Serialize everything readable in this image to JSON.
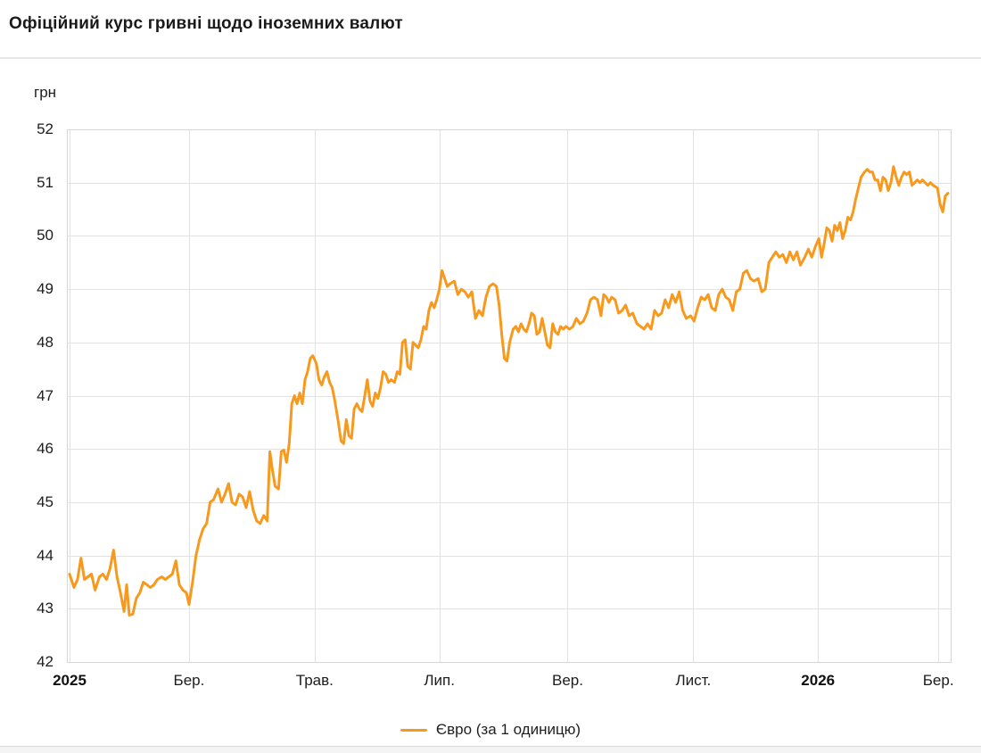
{
  "header": {
    "title": "Офіційний курс гривні щодо іноземних валют"
  },
  "legend": {
    "label": "Євро (за 1 одиницю)"
  },
  "chart_data": {
    "type": "line",
    "title": "Офіційний курс гривні щодо іноземних валют",
    "ylabel": "грн",
    "ylim": [
      42,
      52
    ],
    "grid": true,
    "legend_position": "bottom",
    "colors": {
      "line": "#f7991c",
      "gridline": "#e2e2e2",
      "border": "#d6d6d6",
      "text": "#1c1c1c"
    },
    "y_ticks": [
      "52",
      "51",
      "50",
      "49",
      "48",
      "47",
      "46",
      "45",
      "44",
      "43",
      "42"
    ],
    "x_ticks": [
      {
        "label": "2025",
        "t": 0.0,
        "bold": true
      },
      {
        "label": "Бер.",
        "t": 0.136,
        "bold": false
      },
      {
        "label": "Трав.",
        "t": 0.279,
        "bold": false
      },
      {
        "label": "Лип.",
        "t": 0.421,
        "bold": false
      },
      {
        "label": "Вер.",
        "t": 0.567,
        "bold": false
      },
      {
        "label": "Лист.",
        "t": 0.71,
        "bold": false
      },
      {
        "label": "2026",
        "t": 0.852,
        "bold": true
      },
      {
        "label": "Бер.",
        "t": 0.989,
        "bold": false
      }
    ],
    "series": [
      {
        "name": "Євро (за 1 одиницю)",
        "color": "#f7991c",
        "points": [
          [
            0.0,
            43.65
          ],
          [
            0.005,
            43.4
          ],
          [
            0.009,
            43.55
          ],
          [
            0.013,
            43.95
          ],
          [
            0.017,
            43.55
          ],
          [
            0.021,
            43.6
          ],
          [
            0.025,
            43.65
          ],
          [
            0.029,
            43.35
          ],
          [
            0.034,
            43.6
          ],
          [
            0.038,
            43.65
          ],
          [
            0.042,
            43.55
          ],
          [
            0.046,
            43.75
          ],
          [
            0.05,
            44.1
          ],
          [
            0.054,
            43.6
          ],
          [
            0.058,
            43.3
          ],
          [
            0.062,
            42.95
          ],
          [
            0.065,
            43.45
          ],
          [
            0.068,
            42.88
          ],
          [
            0.072,
            42.9
          ],
          [
            0.076,
            43.2
          ],
          [
            0.08,
            43.3
          ],
          [
            0.084,
            43.5
          ],
          [
            0.088,
            43.45
          ],
          [
            0.092,
            43.4
          ],
          [
            0.096,
            43.45
          ],
          [
            0.1,
            43.55
          ],
          [
            0.105,
            43.6
          ],
          [
            0.109,
            43.55
          ],
          [
            0.113,
            43.6
          ],
          [
            0.117,
            43.65
          ],
          [
            0.121,
            43.9
          ],
          [
            0.125,
            43.45
          ],
          [
            0.129,
            43.35
          ],
          [
            0.133,
            43.3
          ],
          [
            0.136,
            43.08
          ],
          [
            0.14,
            43.5
          ],
          [
            0.144,
            44.0
          ],
          [
            0.148,
            44.3
          ],
          [
            0.152,
            44.5
          ],
          [
            0.156,
            44.6
          ],
          [
            0.16,
            45.0
          ],
          [
            0.164,
            45.05
          ],
          [
            0.169,
            45.25
          ],
          [
            0.173,
            45.0
          ],
          [
            0.177,
            45.15
          ],
          [
            0.181,
            45.35
          ],
          [
            0.185,
            45.0
          ],
          [
            0.189,
            44.95
          ],
          [
            0.193,
            45.15
          ],
          [
            0.197,
            45.1
          ],
          [
            0.201,
            44.9
          ],
          [
            0.205,
            45.2
          ],
          [
            0.209,
            44.85
          ],
          [
            0.213,
            44.65
          ],
          [
            0.217,
            44.6
          ],
          [
            0.221,
            44.75
          ],
          [
            0.225,
            44.65
          ],
          [
            0.228,
            45.95
          ],
          [
            0.231,
            45.6
          ],
          [
            0.234,
            45.3
          ],
          [
            0.238,
            45.25
          ],
          [
            0.241,
            45.95
          ],
          [
            0.244,
            45.98
          ],
          [
            0.247,
            45.75
          ],
          [
            0.25,
            46.1
          ],
          [
            0.253,
            46.85
          ],
          [
            0.256,
            47.0
          ],
          [
            0.259,
            46.85
          ],
          [
            0.262,
            47.05
          ],
          [
            0.265,
            46.85
          ],
          [
            0.268,
            47.3
          ],
          [
            0.271,
            47.45
          ],
          [
            0.274,
            47.7
          ],
          [
            0.277,
            47.75
          ],
          [
            0.281,
            47.6
          ],
          [
            0.284,
            47.3
          ],
          [
            0.287,
            47.2
          ],
          [
            0.29,
            47.35
          ],
          [
            0.293,
            47.45
          ],
          [
            0.296,
            47.25
          ],
          [
            0.299,
            47.15
          ],
          [
            0.302,
            46.9
          ],
          [
            0.306,
            46.5
          ],
          [
            0.309,
            46.15
          ],
          [
            0.312,
            46.1
          ],
          [
            0.315,
            46.55
          ],
          [
            0.318,
            46.25
          ],
          [
            0.321,
            46.2
          ],
          [
            0.324,
            46.75
          ],
          [
            0.327,
            46.85
          ],
          [
            0.33,
            46.75
          ],
          [
            0.333,
            46.7
          ],
          [
            0.336,
            47.0
          ],
          [
            0.339,
            47.3
          ],
          [
            0.342,
            46.9
          ],
          [
            0.345,
            46.8
          ],
          [
            0.348,
            47.05
          ],
          [
            0.351,
            46.95
          ],
          [
            0.354,
            47.15
          ],
          [
            0.357,
            47.45
          ],
          [
            0.36,
            47.4
          ],
          [
            0.363,
            47.25
          ],
          [
            0.366,
            47.3
          ],
          [
            0.37,
            47.25
          ],
          [
            0.373,
            47.45
          ],
          [
            0.376,
            47.4
          ],
          [
            0.379,
            48.0
          ],
          [
            0.382,
            48.05
          ],
          [
            0.385,
            47.55
          ],
          [
            0.388,
            47.5
          ],
          [
            0.391,
            48.0
          ],
          [
            0.394,
            47.95
          ],
          [
            0.397,
            47.9
          ],
          [
            0.4,
            48.05
          ],
          [
            0.403,
            48.3
          ],
          [
            0.406,
            48.25
          ],
          [
            0.409,
            48.6
          ],
          [
            0.412,
            48.75
          ],
          [
            0.415,
            48.65
          ],
          [
            0.418,
            48.8
          ],
          [
            0.421,
            49.0
          ],
          [
            0.424,
            49.35
          ],
          [
            0.427,
            49.2
          ],
          [
            0.43,
            49.05
          ],
          [
            0.433,
            49.1
          ],
          [
            0.438,
            49.15
          ],
          [
            0.442,
            48.9
          ],
          [
            0.446,
            49.0
          ],
          [
            0.45,
            48.95
          ],
          [
            0.454,
            48.85
          ],
          [
            0.458,
            48.95
          ],
          [
            0.462,
            48.45
          ],
          [
            0.466,
            48.6
          ],
          [
            0.47,
            48.5
          ],
          [
            0.474,
            48.85
          ],
          [
            0.478,
            49.05
          ],
          [
            0.482,
            49.1
          ],
          [
            0.486,
            49.05
          ],
          [
            0.489,
            48.7
          ],
          [
            0.492,
            48.15
          ],
          [
            0.495,
            47.7
          ],
          [
            0.498,
            47.65
          ],
          [
            0.501,
            48.0
          ],
          [
            0.505,
            48.25
          ],
          [
            0.508,
            48.3
          ],
          [
            0.511,
            48.2
          ],
          [
            0.514,
            48.35
          ],
          [
            0.517,
            48.25
          ],
          [
            0.52,
            48.2
          ],
          [
            0.523,
            48.35
          ],
          [
            0.526,
            48.55
          ],
          [
            0.529,
            48.5
          ],
          [
            0.532,
            48.15
          ],
          [
            0.535,
            48.2
          ],
          [
            0.538,
            48.45
          ],
          [
            0.541,
            48.2
          ],
          [
            0.544,
            47.95
          ],
          [
            0.547,
            47.9
          ],
          [
            0.55,
            48.35
          ],
          [
            0.553,
            48.2
          ],
          [
            0.556,
            48.15
          ],
          [
            0.559,
            48.3
          ],
          [
            0.562,
            48.25
          ],
          [
            0.565,
            48.3
          ],
          [
            0.569,
            48.25
          ],
          [
            0.573,
            48.3
          ],
          [
            0.577,
            48.45
          ],
          [
            0.581,
            48.35
          ],
          [
            0.585,
            48.4
          ],
          [
            0.589,
            48.55
          ],
          [
            0.593,
            48.8
          ],
          [
            0.597,
            48.85
          ],
          [
            0.601,
            48.8
          ],
          [
            0.605,
            48.5
          ],
          [
            0.608,
            48.9
          ],
          [
            0.611,
            48.85
          ],
          [
            0.614,
            48.75
          ],
          [
            0.617,
            48.85
          ],
          [
            0.621,
            48.8
          ],
          [
            0.625,
            48.55
          ],
          [
            0.629,
            48.6
          ],
          [
            0.633,
            48.7
          ],
          [
            0.637,
            48.5
          ],
          [
            0.641,
            48.55
          ],
          [
            0.646,
            48.35
          ],
          [
            0.65,
            48.3
          ],
          [
            0.654,
            48.25
          ],
          [
            0.658,
            48.35
          ],
          [
            0.662,
            48.25
          ],
          [
            0.666,
            48.6
          ],
          [
            0.67,
            48.5
          ],
          [
            0.674,
            48.55
          ],
          [
            0.678,
            48.8
          ],
          [
            0.682,
            48.65
          ],
          [
            0.686,
            48.9
          ],
          [
            0.69,
            48.75
          ],
          [
            0.694,
            48.95
          ],
          [
            0.698,
            48.6
          ],
          [
            0.702,
            48.45
          ],
          [
            0.707,
            48.5
          ],
          [
            0.711,
            48.4
          ],
          [
            0.715,
            48.65
          ],
          [
            0.719,
            48.85
          ],
          [
            0.723,
            48.8
          ],
          [
            0.727,
            48.9
          ],
          [
            0.731,
            48.65
          ],
          [
            0.735,
            48.6
          ],
          [
            0.739,
            48.9
          ],
          [
            0.743,
            49.0
          ],
          [
            0.747,
            48.85
          ],
          [
            0.751,
            48.8
          ],
          [
            0.755,
            48.6
          ],
          [
            0.759,
            48.95
          ],
          [
            0.763,
            49.0
          ],
          [
            0.767,
            49.3
          ],
          [
            0.771,
            49.35
          ],
          [
            0.775,
            49.2
          ],
          [
            0.779,
            49.15
          ],
          [
            0.784,
            49.2
          ],
          [
            0.788,
            48.95
          ],
          [
            0.792,
            49.0
          ],
          [
            0.796,
            49.5
          ],
          [
            0.8,
            49.6
          ],
          [
            0.804,
            49.7
          ],
          [
            0.808,
            49.6
          ],
          [
            0.812,
            49.65
          ],
          [
            0.816,
            49.5
          ],
          [
            0.82,
            49.7
          ],
          [
            0.824,
            49.55
          ],
          [
            0.828,
            49.7
          ],
          [
            0.832,
            49.45
          ],
          [
            0.837,
            49.6
          ],
          [
            0.841,
            49.75
          ],
          [
            0.845,
            49.6
          ],
          [
            0.849,
            49.8
          ],
          [
            0.853,
            49.95
          ],
          [
            0.856,
            49.6
          ],
          [
            0.859,
            49.85
          ],
          [
            0.862,
            50.15
          ],
          [
            0.865,
            50.1
          ],
          [
            0.868,
            49.9
          ],
          [
            0.871,
            50.2
          ],
          [
            0.874,
            50.1
          ],
          [
            0.877,
            50.25
          ],
          [
            0.88,
            49.95
          ],
          [
            0.883,
            50.1
          ],
          [
            0.886,
            50.35
          ],
          [
            0.889,
            50.3
          ],
          [
            0.892,
            50.45
          ],
          [
            0.895,
            50.7
          ],
          [
            0.898,
            50.9
          ],
          [
            0.901,
            51.1
          ],
          [
            0.905,
            51.2
          ],
          [
            0.908,
            51.25
          ],
          [
            0.911,
            51.2
          ],
          [
            0.914,
            51.2
          ],
          [
            0.917,
            51.05
          ],
          [
            0.92,
            51.05
          ],
          [
            0.923,
            50.85
          ],
          [
            0.926,
            51.1
          ],
          [
            0.929,
            51.05
          ],
          [
            0.932,
            50.85
          ],
          [
            0.935,
            51.0
          ],
          [
            0.938,
            51.3
          ],
          [
            0.941,
            51.1
          ],
          [
            0.944,
            50.95
          ],
          [
            0.947,
            51.1
          ],
          [
            0.95,
            51.2
          ],
          [
            0.953,
            51.15
          ],
          [
            0.956,
            51.2
          ],
          [
            0.959,
            50.95
          ],
          [
            0.962,
            51.0
          ],
          [
            0.965,
            51.05
          ],
          [
            0.968,
            51.0
          ],
          [
            0.971,
            51.05
          ],
          [
            0.974,
            51.0
          ],
          [
            0.977,
            50.95
          ],
          [
            0.98,
            51.0
          ],
          [
            0.983,
            50.95
          ],
          [
            0.988,
            50.9
          ],
          [
            0.991,
            50.6
          ],
          [
            0.994,
            50.45
          ],
          [
            0.997,
            50.75
          ],
          [
            1.0,
            50.8
          ]
        ]
      }
    ]
  }
}
